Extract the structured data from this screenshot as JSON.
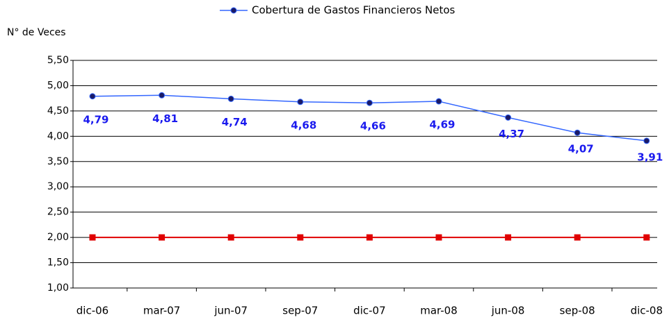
{
  "chart_data": {
    "type": "line",
    "ylabel": "N° de Veces",
    "categories": [
      "dic-06",
      "mar-07",
      "jun-07",
      "sep-07",
      "dic-07",
      "mar-08",
      "jun-08",
      "sep-08",
      "dic-08"
    ],
    "series": [
      {
        "name": "Cobertura de Gastos Financieros Netos",
        "color": "#3366ff",
        "marker_color": "#1a1a66",
        "label_color": "#1a1aee",
        "values": [
          4.79,
          4.81,
          4.74,
          4.68,
          4.66,
          4.69,
          4.37,
          4.07,
          3.91
        ],
        "value_labels": [
          "4,79",
          "4,81",
          "4,74",
          "4,68",
          "4,66",
          "4,69",
          "4,37",
          "4,07",
          "3,91"
        ]
      },
      {
        "color": "#e00000",
        "marker_color": "#e00000",
        "values": [
          2.0,
          2.0,
          2.0,
          2.0,
          2.0,
          2.0,
          2.0,
          2.0,
          2.0
        ]
      }
    ],
    "ylim": [
      1.0,
      5.5
    ],
    "yticks": [
      {
        "value": 1.0,
        "label": "1,00"
      },
      {
        "value": 1.5,
        "label": "1,50"
      },
      {
        "value": 2.0,
        "label": "2,00"
      },
      {
        "value": 2.5,
        "label": "2,50"
      },
      {
        "value": 3.0,
        "label": "3,00"
      },
      {
        "value": 3.5,
        "label": "3,50"
      },
      {
        "value": 4.0,
        "label": "4,00"
      },
      {
        "value": 4.5,
        "label": "4,50"
      },
      {
        "value": 5.0,
        "label": "5,00"
      },
      {
        "value": 5.5,
        "label": "5,50"
      }
    ],
    "grid": true,
    "legend": "top"
  }
}
